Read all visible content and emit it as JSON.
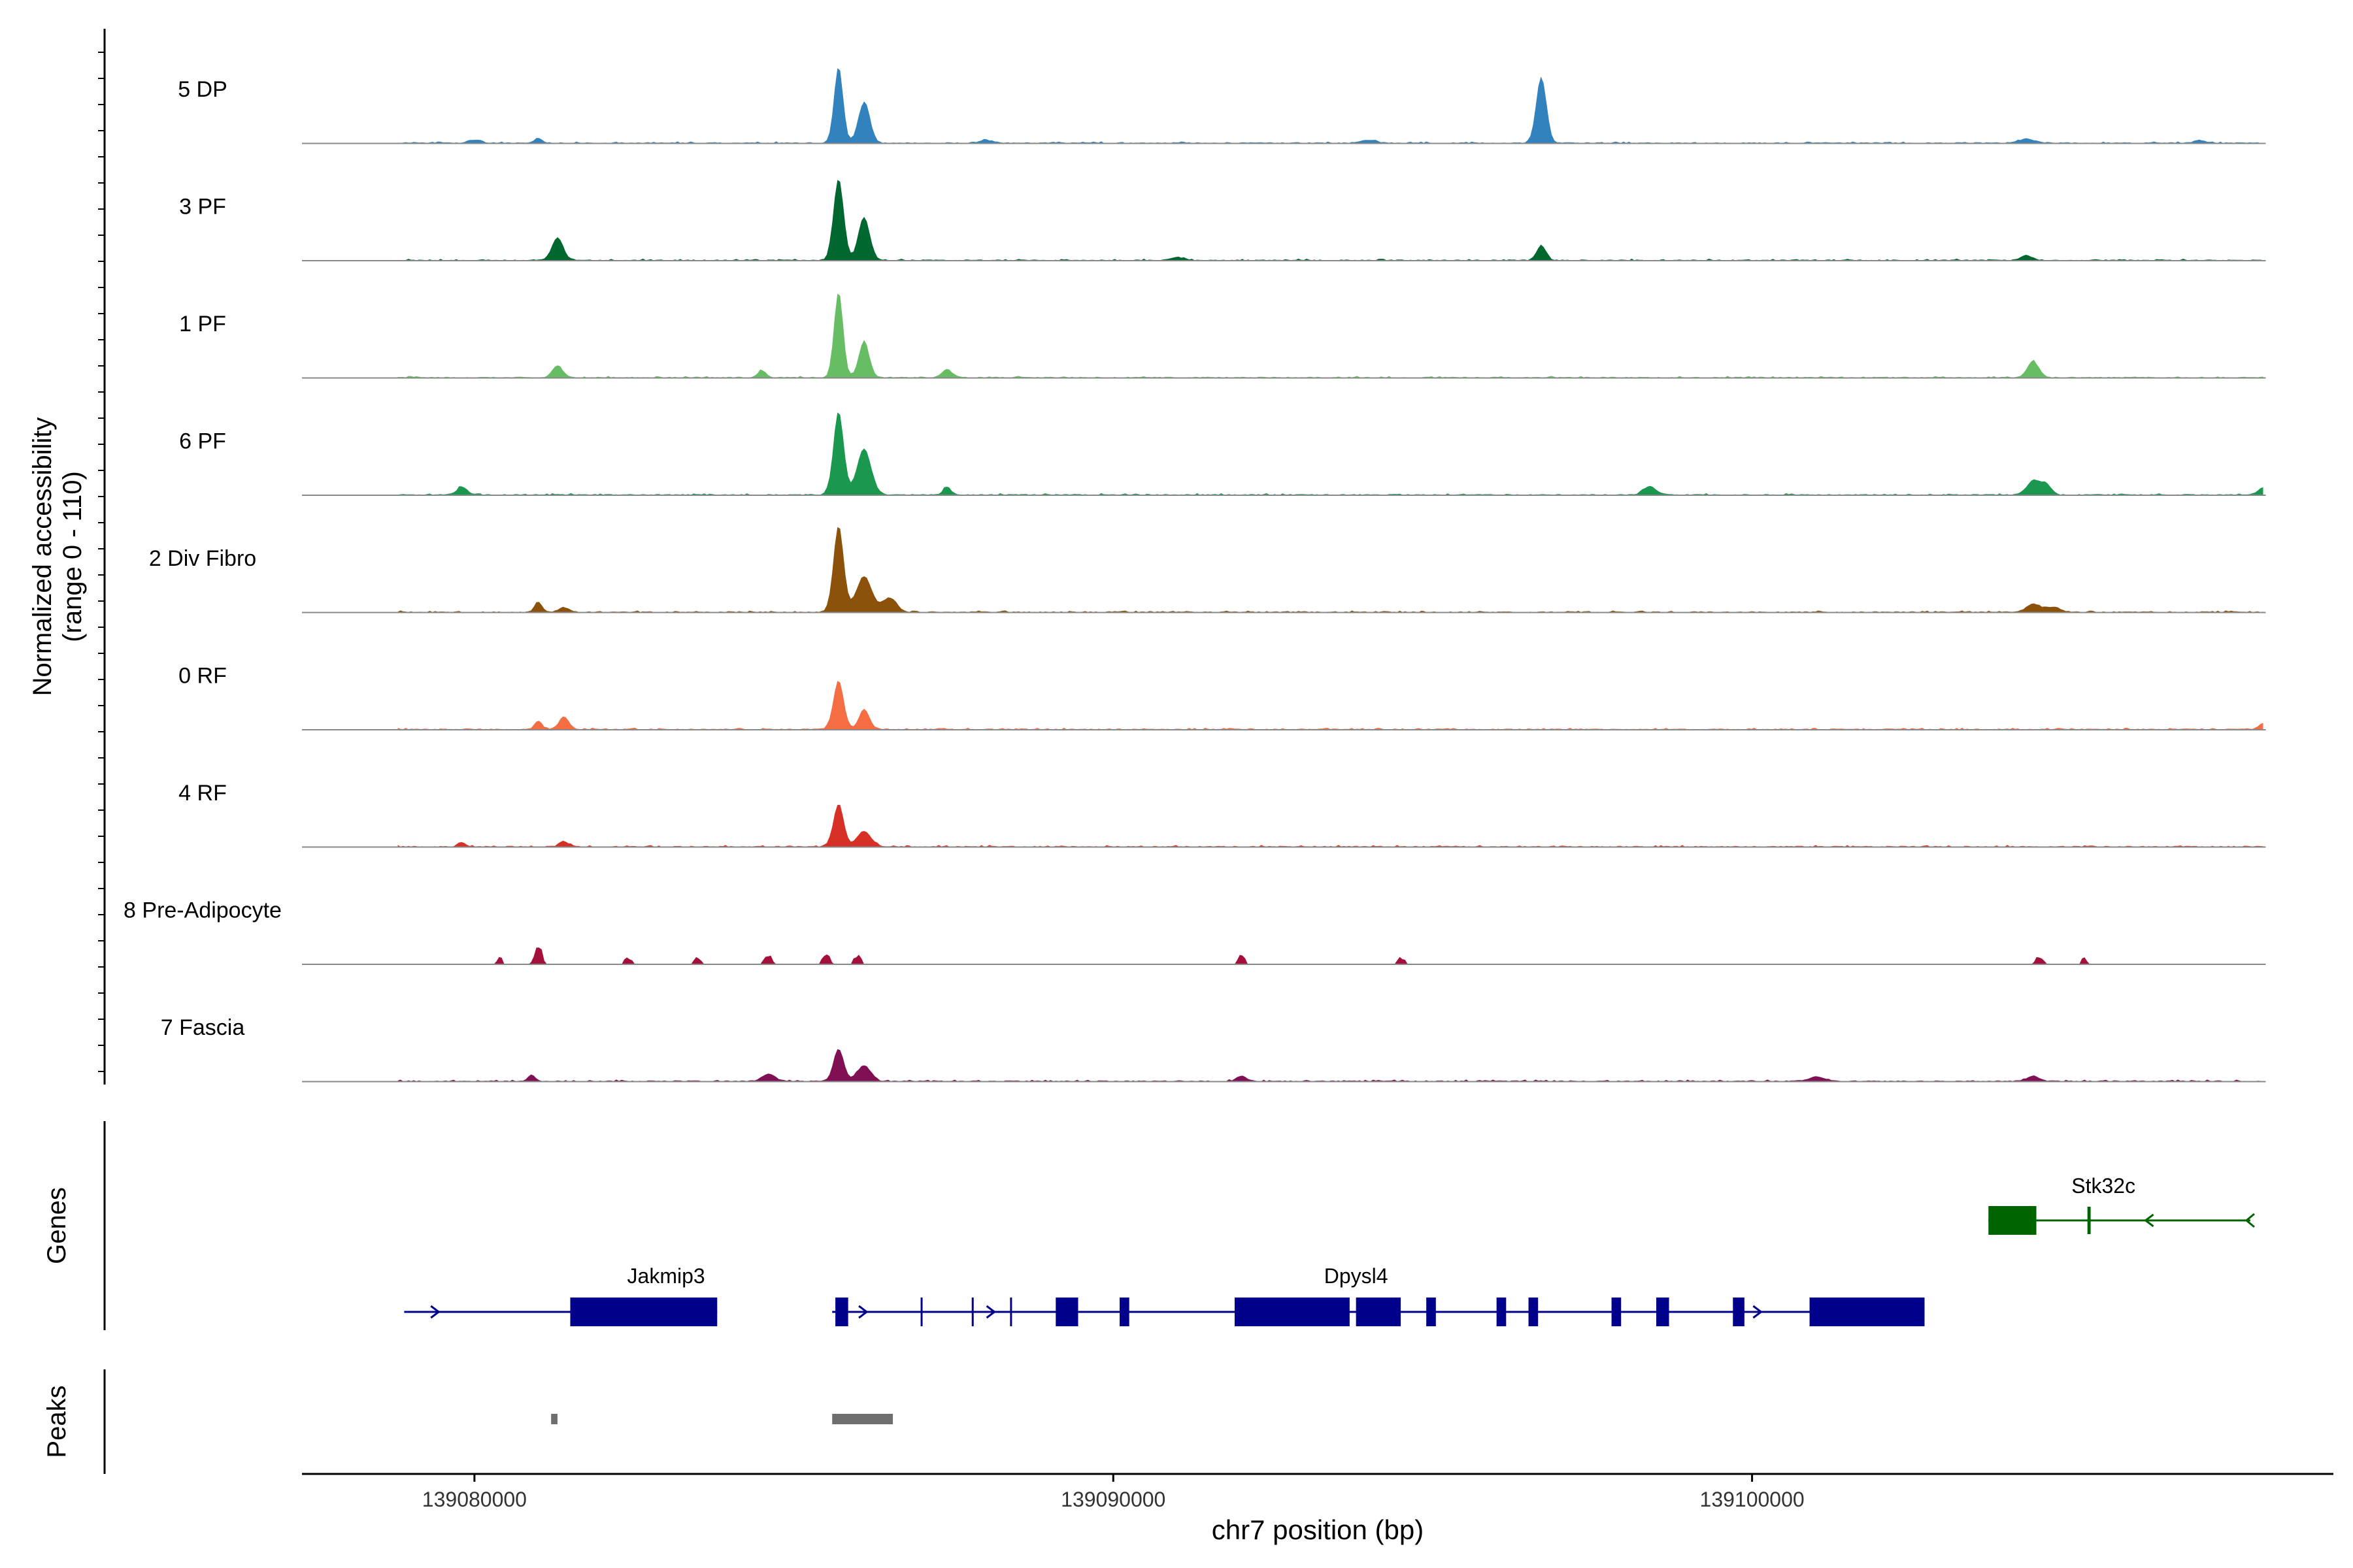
{
  "chart_data": {
    "type": "area",
    "title": "",
    "ylabel_line1": "Normalized accessibility",
    "ylabel_line2": "(range 0 - 110)",
    "xlabel": "chr7 position (bp)",
    "chromosome": "chr7",
    "xlim": [
      139077300,
      139109100
    ],
    "ylim": [
      0,
      110
    ],
    "x_ticks": [
      139080000,
      139090000,
      139100000
    ],
    "x_tick_labels": [
      "139080000",
      "139090000",
      "139100000"
    ],
    "series": [
      {
        "name": "5 DP",
        "color": "#3182bd",
        "peaks": [
          [
            139081000,
            5,
            60
          ],
          [
            139085700,
            75,
            70
          ],
          [
            139086100,
            40,
            90
          ],
          [
            139096700,
            65,
            80
          ],
          [
            139080000,
            3,
            100
          ],
          [
            139088000,
            3,
            100
          ],
          [
            139094000,
            3,
            120
          ],
          [
            139104300,
            4,
            120
          ],
          [
            139107000,
            3,
            80
          ]
        ]
      },
      {
        "name": "3 PF",
        "color": "#00682f",
        "peaks": [
          [
            139081300,
            22,
            90
          ],
          [
            139085700,
            80,
            80
          ],
          [
            139086100,
            42,
            90
          ],
          [
            139096700,
            15,
            70
          ],
          [
            139091000,
            3,
            100
          ],
          [
            139104300,
            5,
            80
          ]
        ]
      },
      {
        "name": "1 PF",
        "color": "#66bd63",
        "peaks": [
          [
            139081300,
            12,
            80
          ],
          [
            139084500,
            7,
            60
          ],
          [
            139085700,
            85,
            70
          ],
          [
            139086100,
            36,
            80
          ],
          [
            139087400,
            8,
            80
          ],
          [
            139104400,
            16,
            90
          ]
        ]
      },
      {
        "name": "6 PF",
        "color": "#1a9850",
        "peaks": [
          [
            139079800,
            8,
            80
          ],
          [
            139085700,
            82,
            80
          ],
          [
            139086100,
            45,
            110
          ],
          [
            139087400,
            8,
            60
          ],
          [
            139098400,
            8,
            100
          ],
          [
            139104400,
            14,
            100
          ],
          [
            139104600,
            10,
            80
          ],
          [
            139108000,
            7,
            80
          ]
        ]
      },
      {
        "name": "2 Div Fibro",
        "color": "#8c510a",
        "peaks": [
          [
            139081000,
            10,
            60
          ],
          [
            139081400,
            5,
            80
          ],
          [
            139085700,
            85,
            80
          ],
          [
            139086100,
            35,
            120
          ],
          [
            139086500,
            14,
            110
          ],
          [
            139104400,
            8,
            100
          ],
          [
            139104700,
            5,
            120
          ]
        ]
      },
      {
        "name": "0 RF",
        "color": "#f46d43",
        "peaks": [
          [
            139081000,
            8,
            60
          ],
          [
            139081400,
            12,
            80
          ],
          [
            139085700,
            48,
            80
          ],
          [
            139086100,
            20,
            80
          ],
          [
            139108000,
            6,
            60
          ]
        ]
      },
      {
        "name": "4 RF",
        "color": "#d73027",
        "peaks": [
          [
            139085700,
            42,
            80
          ],
          [
            139086100,
            15,
            110
          ],
          [
            139081400,
            5,
            80
          ],
          [
            139079800,
            4,
            60
          ]
        ]
      },
      {
        "name": "8 Pre-Adipocyte",
        "color": "#a50f3b",
        "peaks": [
          [
            139081000,
            20,
            60
          ],
          [
            139080400,
            10,
            40
          ],
          [
            139082400,
            8,
            60
          ],
          [
            139083500,
            8,
            60
          ],
          [
            139084600,
            10,
            60
          ],
          [
            139085500,
            12,
            60
          ],
          [
            139086000,
            10,
            60
          ],
          [
            139092000,
            10,
            60
          ],
          [
            139094500,
            8,
            60
          ],
          [
            139104500,
            10,
            60
          ],
          [
            139105200,
            8,
            40
          ]
        ]
      },
      {
        "name": "7 Fascia",
        "color": "#810f53",
        "peaks": [
          [
            139080900,
            6,
            60
          ],
          [
            139084600,
            7,
            100
          ],
          [
            139085700,
            32,
            80
          ],
          [
            139086100,
            15,
            110
          ],
          [
            139092000,
            5,
            80
          ],
          [
            139101000,
            4,
            120
          ],
          [
            139104400,
            5,
            100
          ]
        ]
      }
    ],
    "genes": [
      {
        "name": "Jakmip3",
        "start": 139078900,
        "end": 139083800,
        "strand": "+",
        "color": "#00008b",
        "exons": [
          [
            139081500,
            139083800
          ]
        ]
      },
      {
        "name": "Dpysl4",
        "start": 139085600,
        "end": 139102700,
        "strand": "+",
        "color": "#00008b",
        "exons": [
          [
            139085650,
            139085850
          ],
          [
            139089100,
            139089450
          ],
          [
            139090100,
            139090250
          ],
          [
            139091900,
            139093700
          ],
          [
            139093800,
            139094500
          ],
          [
            139094900,
            139095050
          ],
          [
            139096000,
            139096150
          ],
          [
            139096500,
            139096650
          ],
          [
            139097800,
            139097950
          ],
          [
            139098500,
            139098700
          ],
          [
            139099700,
            139099880
          ],
          [
            139100900,
            139102700
          ]
        ],
        "introns_marks": [
          139087000,
          139087800,
          139088400
        ]
      },
      {
        "name": "Stk32c",
        "start": 139103700,
        "end": 139107800,
        "strand": "-",
        "color": "#006400",
        "exons": [
          [
            139103700,
            139104450
          ],
          [
            139105250,
            139105300
          ]
        ]
      }
    ],
    "peaks_track": [
      [
        139081200,
        139081300
      ],
      [
        139085600,
        139086550
      ]
    ],
    "section_labels": {
      "genes": "Genes",
      "peaks": "Peaks"
    }
  }
}
